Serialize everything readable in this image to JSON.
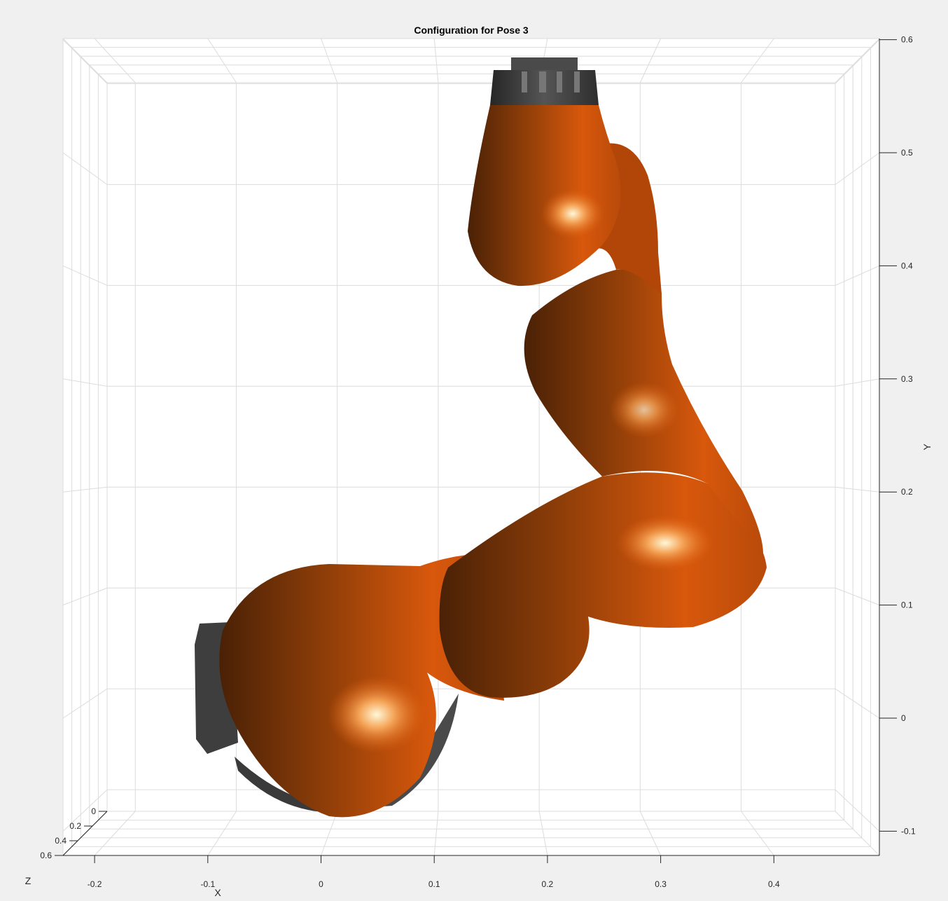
{
  "chart_data": {
    "type": "3d-surface",
    "title": "Configuration for Pose 3",
    "xlabel": "X",
    "ylabel": "Y",
    "zlabel": "Z",
    "x_ticks": [
      "-0.2",
      "-0.1",
      "0",
      "0.1",
      "0.2",
      "0.3",
      "0.4"
    ],
    "y_ticks": [
      "-0.1",
      "0",
      "0.1",
      "0.2",
      "0.3",
      "0.4",
      "0.5",
      "0.6"
    ],
    "z_ticks": [
      "0",
      "0.2",
      "0.4",
      "0.6"
    ],
    "xlim": [
      -0.23,
      0.49
    ],
    "ylim": [
      -0.12,
      0.6
    ],
    "zlim": [
      0,
      0.6
    ],
    "grid": true,
    "colors": {
      "link": "#e0600f",
      "link_shadow": "#5a2a08",
      "joint_cap": "#3c3c3c",
      "background": "#f0f0f0",
      "axes": "#ffffff"
    }
  }
}
